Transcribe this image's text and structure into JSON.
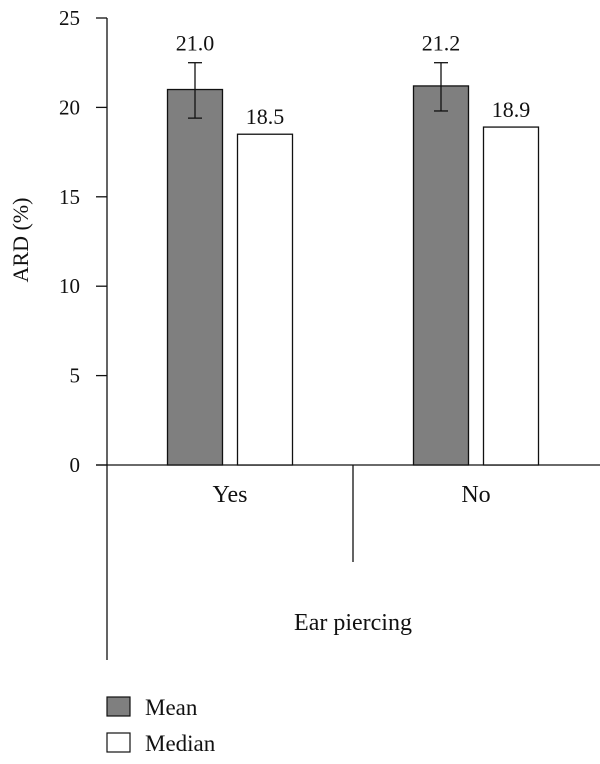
{
  "chart_data": {
    "type": "bar",
    "ylabel": "ARD (%)",
    "xlabel": "Ear piercing",
    "ylim": [
      0,
      25
    ],
    "yticks": [
      0,
      5,
      10,
      15,
      20,
      25
    ],
    "categories": [
      "Yes",
      "No"
    ],
    "series": [
      {
        "name": "Mean",
        "values": [
          21.0,
          21.2
        ],
        "value_labels": [
          "21.0",
          "21.2"
        ],
        "error_bars": [
          [
            19.4,
            22.5
          ],
          [
            19.8,
            22.5
          ]
        ],
        "color": "#7f7f7f"
      },
      {
        "name": "Median",
        "values": [
          18.5,
          18.9
        ],
        "value_labels": [
          "18.5",
          "18.9"
        ],
        "color": "#ffffff"
      }
    ],
    "legend": [
      "Mean",
      "Median"
    ],
    "legend_position": "bottom-left",
    "grid": false
  }
}
